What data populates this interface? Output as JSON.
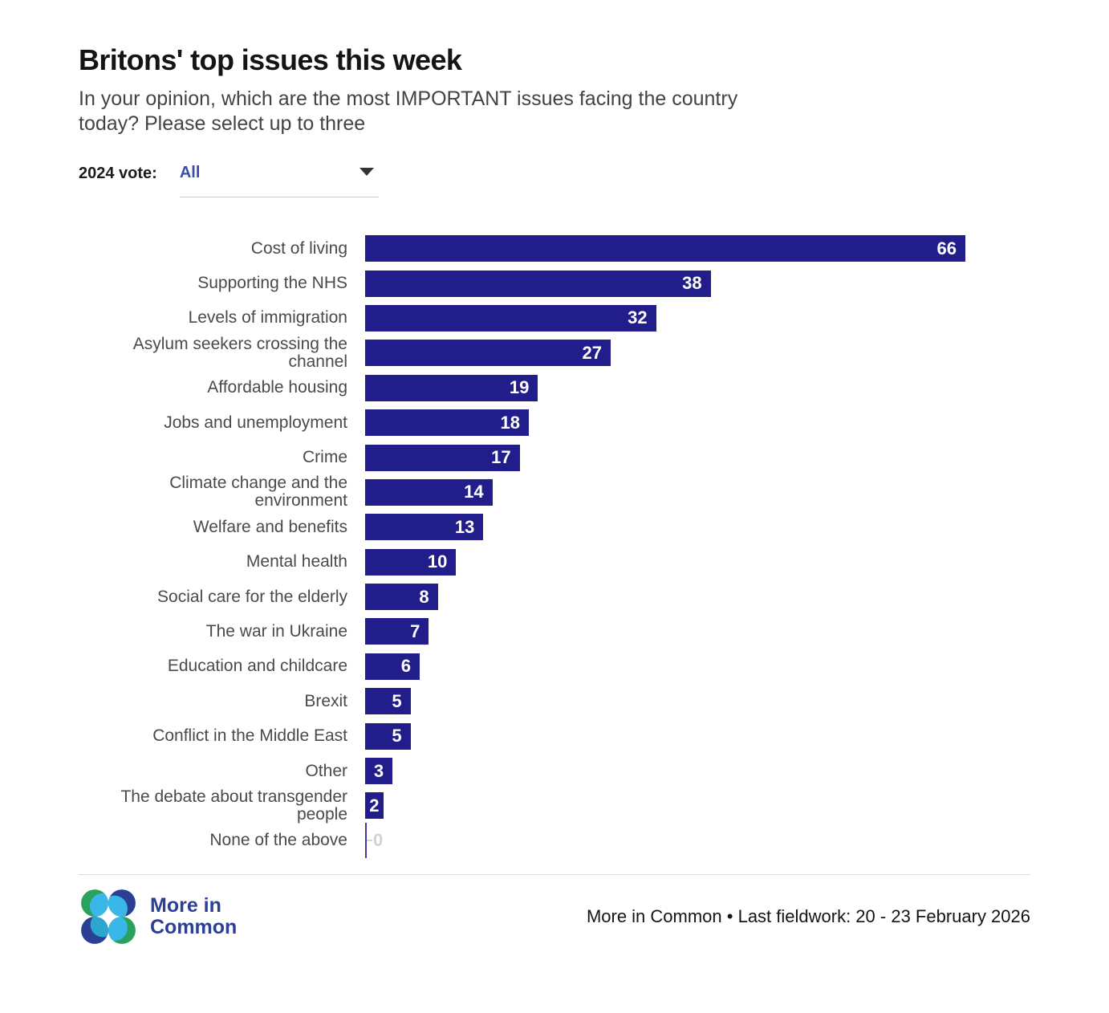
{
  "filter": {
    "label": "2024 vote:",
    "value": "All"
  },
  "chart_data": {
    "type": "bar",
    "orientation": "horizontal",
    "title": "Britons' top issues this week",
    "subtitle_lines": [
      "In your opinion, which are the most IMPORTANT issues facing the country",
      "today? Please select up to three"
    ],
    "categories": [
      "Cost of living",
      "Supporting the NHS",
      "Levels of immigration",
      "Asylum seekers crossing the channel",
      "Affordable housing",
      "Jobs and unemployment",
      "Crime",
      "Climate change and the environment",
      "Welfare and benefits",
      "Mental health",
      "Social care for the elderly",
      "The war in Ukraine",
      "Education and childcare",
      "Brexit",
      "Conflict in the Middle East",
      "Other",
      "The debate about transgender people",
      "None of the above"
    ],
    "values": [
      66,
      38,
      32,
      27,
      19,
      18,
      17,
      14,
      13,
      10,
      8,
      7,
      6,
      5,
      5,
      3,
      2,
      0
    ],
    "xlim": [
      0,
      66
    ],
    "grid": false,
    "value_labels": "inside-end",
    "bar_color": "#211e8c",
    "value_label_color": "#ffffff",
    "zero_label_color": "#d2d2d2"
  },
  "footer": {
    "brand_line1": "More in",
    "brand_line2": "Common",
    "source": "More in Common • Last fieldwork: 20 - 23 February 2026",
    "logo_colors": {
      "green": "#2aa15c",
      "dark_blue": "#2b4095",
      "light_blue": "#39b7e9",
      "teal": "#2ba6cf"
    }
  }
}
